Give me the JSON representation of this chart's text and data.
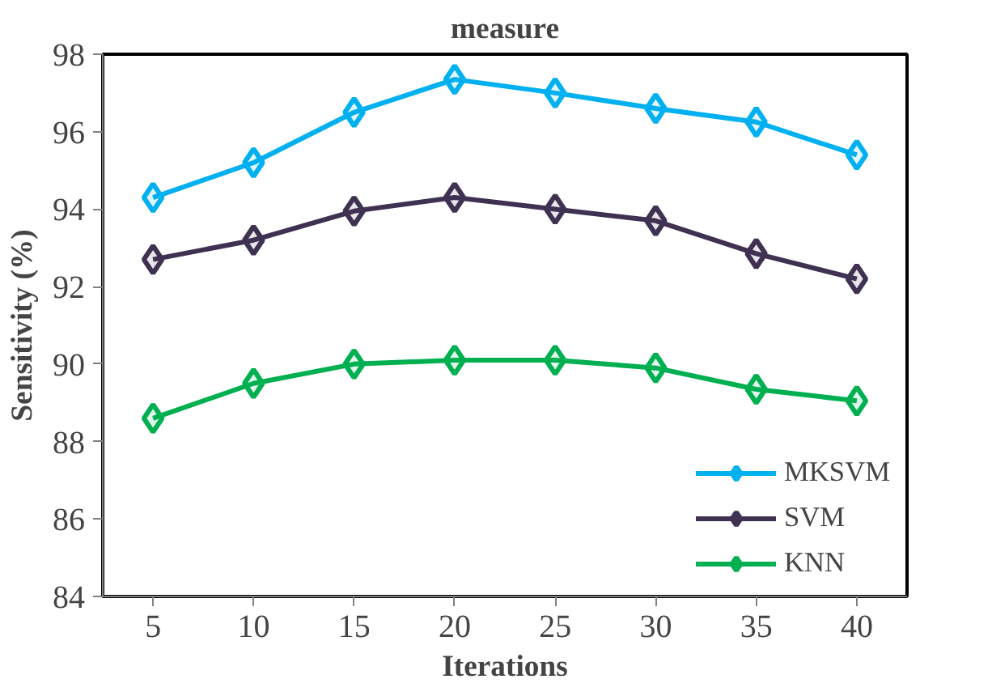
{
  "chart_data": {
    "type": "line",
    "title": "measure",
    "xlabel": "Iterations",
    "ylabel": "Sensitivity (%)",
    "categories": [
      "5",
      "10",
      "15",
      "20",
      "25",
      "30",
      "35",
      "40"
    ],
    "series": [
      {
        "name": "MKSVM",
        "color": "#00b0f0",
        "values": [
          94.3,
          95.2,
          96.5,
          97.35,
          97.0,
          96.6,
          96.25,
          95.4
        ]
      },
      {
        "name": "SVM",
        "color": "#3f3151",
        "values": [
          92.7,
          93.2,
          93.95,
          94.3,
          94.0,
          93.7,
          92.85,
          92.2
        ]
      },
      {
        "name": "KNN",
        "color": "#00b050",
        "values": [
          88.6,
          89.5,
          90.0,
          90.1,
          90.1,
          89.9,
          89.35,
          89.05
        ]
      }
    ],
    "ylim": [
      84,
      98
    ],
    "yticks": [
      84,
      86,
      88,
      90,
      92,
      94,
      96,
      98
    ],
    "grid": false,
    "legend": "bottom right",
    "marker": "diamond",
    "line_style": "solid"
  }
}
